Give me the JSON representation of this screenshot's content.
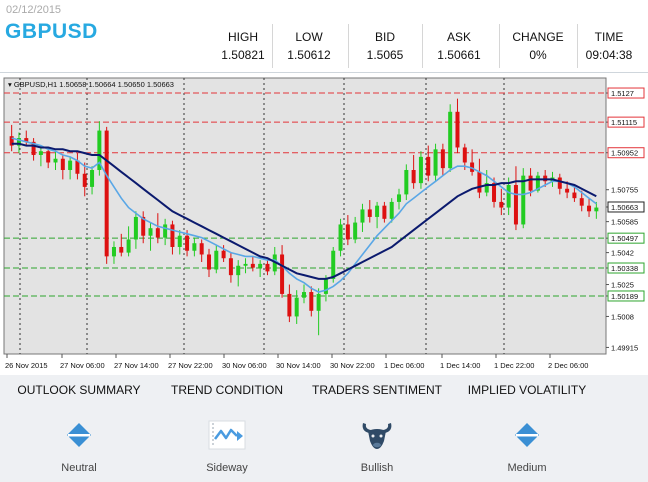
{
  "header": {
    "date": "02/12/2015",
    "symbol": "GBPUSD",
    "stats": [
      {
        "label": "HIGH",
        "value": "1.50821"
      },
      {
        "label": "LOW",
        "value": "1.50612"
      },
      {
        "label": "BID",
        "value": "1.5065"
      },
      {
        "label": "ASK",
        "value": "1.50661"
      },
      {
        "label": "CHANGE",
        "value": "0%"
      },
      {
        "label": "TIME",
        "value": "09:04:38"
      }
    ]
  },
  "chart_data": {
    "type": "line",
    "title": "GBPUSD,H1  1.50658 1.50664 1.50650 1.50663",
    "x_ticks": [
      "26 Nov 2015",
      "27 Nov 06:00",
      "27 Nov 14:00",
      "27 Nov 22:00",
      "30 Nov 06:00",
      "30 Nov 14:00",
      "30 Nov 22:00",
      "1 Dec 06:00",
      "1 Dec 14:00",
      "1 Dec 22:00",
      "2 Dec 06:00"
    ],
    "y_ticks": [
      1.5127,
      1.51115,
      1.50952,
      1.50755,
      1.50663,
      1.50585,
      1.50497,
      1.5042,
      1.50338,
      1.5025,
      1.50189,
      1.5008,
      1.49915
    ],
    "levels": {
      "resistance": [
        1.5127,
        1.51115,
        1.50952
      ],
      "support": [
        1.50497,
        1.50338,
        1.50189
      ],
      "current": 1.50663
    },
    "ylim": [
      1.4988,
      1.5135
    ],
    "grid": true,
    "colors": {
      "bull": "#22cc22",
      "bear": "#dd1111",
      "ma_fast": "#5aa7e6",
      "ma_slow": "#0b1a6e",
      "resistance": "#e3343a",
      "support": "#2ea52e",
      "plot_bg": "#e3e3e3"
    },
    "candles": [
      [
        1.5104,
        1.511,
        1.5096,
        1.5099
      ],
      [
        1.5099,
        1.5106,
        1.5095,
        1.5103
      ],
      [
        1.5103,
        1.5107,
        1.5099,
        1.5101
      ],
      [
        1.5101,
        1.5103,
        1.5091,
        1.5094
      ],
      [
        1.5094,
        1.5098,
        1.5088,
        1.5096
      ],
      [
        1.5096,
        1.5098,
        1.5087,
        1.509
      ],
      [
        1.509,
        1.5096,
        1.5086,
        1.5092
      ],
      [
        1.5092,
        1.5094,
        1.5081,
        1.5086
      ],
      [
        1.5086,
        1.5093,
        1.5081,
        1.5091
      ],
      [
        1.5091,
        1.5095,
        1.5081,
        1.5084
      ],
      [
        1.5084,
        1.509,
        1.5072,
        1.5077
      ],
      [
        1.5077,
        1.5088,
        1.5073,
        1.5086
      ],
      [
        1.5086,
        1.5112,
        1.5083,
        1.5107
      ],
      [
        1.5107,
        1.5109,
        1.5036,
        1.504
      ],
      [
        1.504,
        1.5048,
        1.5036,
        1.5045
      ],
      [
        1.5045,
        1.5052,
        1.504,
        1.5042
      ],
      [
        1.5042,
        1.5056,
        1.504,
        1.5049
      ],
      [
        1.5049,
        1.5064,
        1.5044,
        1.5061
      ],
      [
        1.5061,
        1.5064,
        1.5047,
        1.5051
      ],
      [
        1.5051,
        1.5058,
        1.5043,
        1.5055
      ],
      [
        1.5055,
        1.5063,
        1.5047,
        1.505
      ],
      [
        1.505,
        1.506,
        1.5046,
        1.5057
      ],
      [
        1.5057,
        1.5059,
        1.5041,
        1.5045
      ],
      [
        1.5045,
        1.5054,
        1.5041,
        1.5051
      ],
      [
        1.5051,
        1.5054,
        1.504,
        1.5043
      ],
      [
        1.5043,
        1.505,
        1.504,
        1.5047
      ],
      [
        1.5047,
        1.5049,
        1.5037,
        1.5041
      ],
      [
        1.5041,
        1.5044,
        1.5029,
        1.5033
      ],
      [
        1.5033,
        1.5046,
        1.5031,
        1.5043
      ],
      [
        1.5043,
        1.5046,
        1.5037,
        1.5039
      ],
      [
        1.5039,
        1.5042,
        1.5026,
        1.503
      ],
      [
        1.503,
        1.5038,
        1.5024,
        1.5035
      ],
      [
        1.5035,
        1.5039,
        1.5031,
        1.5036
      ],
      [
        1.5036,
        1.504,
        1.5032,
        1.5034
      ],
      [
        1.5034,
        1.5038,
        1.5029,
        1.5036
      ],
      [
        1.5036,
        1.5038,
        1.503,
        1.5032
      ],
      [
        1.5032,
        1.5045,
        1.503,
        1.5041
      ],
      [
        1.5041,
        1.5046,
        1.5018,
        1.502
      ],
      [
        1.502,
        1.5025,
        1.5005,
        1.5008
      ],
      [
        1.5008,
        1.5022,
        1.5004,
        1.5018
      ],
      [
        1.5018,
        1.5025,
        1.5015,
        1.5021
      ],
      [
        1.5021,
        1.5024,
        1.5008,
        1.5011
      ],
      [
        1.5011,
        1.5023,
        1.4998,
        1.502
      ],
      [
        1.502,
        1.503,
        1.5016,
        1.5028
      ],
      [
        1.5028,
        1.5045,
        1.5026,
        1.5043
      ],
      [
        1.5043,
        1.506,
        1.504,
        1.5057
      ],
      [
        1.5057,
        1.5062,
        1.5046,
        1.5049
      ],
      [
        1.5049,
        1.5061,
        1.5047,
        1.5058
      ],
      [
        1.5058,
        1.5068,
        1.5053,
        1.5065
      ],
      [
        1.5065,
        1.507,
        1.5058,
        1.5061
      ],
      [
        1.5061,
        1.5069,
        1.5055,
        1.5067
      ],
      [
        1.5067,
        1.5069,
        1.5058,
        1.506
      ],
      [
        1.506,
        1.5071,
        1.5058,
        1.5069
      ],
      [
        1.5069,
        1.5076,
        1.5065,
        1.5073
      ],
      [
        1.5073,
        1.5089,
        1.507,
        1.5086
      ],
      [
        1.5086,
        1.5094,
        1.5076,
        1.5079
      ],
      [
        1.5079,
        1.5096,
        1.5076,
        1.5093
      ],
      [
        1.5093,
        1.5099,
        1.508,
        1.5083
      ],
      [
        1.5083,
        1.51,
        1.508,
        1.5097
      ],
      [
        1.5097,
        1.51,
        1.5083,
        1.5087
      ],
      [
        1.5087,
        1.5121,
        1.5085,
        1.5117
      ],
      [
        1.5117,
        1.5124,
        1.5095,
        1.5098
      ],
      [
        1.5098,
        1.51,
        1.5086,
        1.509
      ],
      [
        1.509,
        1.5097,
        1.5083,
        1.5085
      ],
      [
        1.5085,
        1.5092,
        1.5071,
        1.5074
      ],
      [
        1.5074,
        1.5086,
        1.5072,
        1.5079
      ],
      [
        1.5079,
        1.5082,
        1.5066,
        1.5069
      ],
      [
        1.5069,
        1.5076,
        1.5062,
        1.5066
      ],
      [
        1.5066,
        1.5082,
        1.5062,
        1.5078
      ],
      [
        1.5078,
        1.5088,
        1.5054,
        1.5057
      ],
      [
        1.5057,
        1.5087,
        1.5055,
        1.5083
      ],
      [
        1.5083,
        1.5087,
        1.5072,
        1.5075
      ],
      [
        1.5075,
        1.5085,
        1.5074,
        1.5083
      ],
      [
        1.5083,
        1.5086,
        1.5077,
        1.508
      ],
      [
        1.508,
        1.5085,
        1.5077,
        1.5082
      ],
      [
        1.5082,
        1.5084,
        1.5073,
        1.5076
      ],
      [
        1.5076,
        1.508,
        1.5071,
        1.5074
      ],
      [
        1.5074,
        1.5078,
        1.5069,
        1.5071
      ],
      [
        1.5071,
        1.5075,
        1.5064,
        1.5067
      ],
      [
        1.5067,
        1.5071,
        1.5061,
        1.5064
      ],
      [
        1.5064,
        1.5069,
        1.506,
        1.5066
      ]
    ],
    "ma_fast": [
      1.5103,
      1.5102,
      1.5101,
      1.51,
      1.5099,
      1.5097,
      1.5096,
      1.5094,
      1.5093,
      1.5091,
      1.5088,
      1.5087,
      1.509,
      1.5083,
      1.5077,
      1.5071,
      1.5066,
      1.5063,
      1.506,
      1.5058,
      1.5056,
      1.5055,
      1.5054,
      1.5053,
      1.5052,
      1.5051,
      1.505,
      1.5048,
      1.5046,
      1.5044,
      1.5042,
      1.5041,
      1.504,
      1.504,
      1.5039,
      1.5038,
      1.5038,
      1.5035,
      1.5031,
      1.5028,
      1.5026,
      1.5023,
      1.5021,
      1.5022,
      1.5024,
      1.5027,
      1.5031,
      1.5036,
      1.5041,
      1.5046,
      1.5051,
      1.5055,
      1.5059,
      1.5063,
      1.5068,
      1.5071,
      1.5074,
      1.5077,
      1.508,
      1.5083,
      1.5086,
      1.5088,
      1.5088,
      1.5087,
      1.5085,
      1.5083,
      1.508,
      1.5077,
      1.5074,
      1.5073,
      1.5073,
      1.5074,
      1.5076,
      1.5078,
      1.508,
      1.508,
      1.5079,
      1.5077,
      1.5074,
      1.5071,
      1.5068
    ],
    "ma_slow": [
      1.51,
      1.51,
      1.5099,
      1.5099,
      1.5098,
      1.5098,
      1.5097,
      1.5097,
      1.5096,
      1.5096,
      1.5095,
      1.5094,
      1.5094,
      1.5091,
      1.5088,
      1.5085,
      1.5082,
      1.5079,
      1.5076,
      1.5073,
      1.507,
      1.5067,
      1.5064,
      1.5062,
      1.506,
      1.5058,
      1.5056,
      1.5054,
      1.5052,
      1.505,
      1.5048,
      1.5046,
      1.5044,
      1.5042,
      1.504,
      1.5039,
      1.5037,
      1.5035,
      1.5033,
      1.5031,
      1.503,
      1.5029,
      1.5028,
      1.5028,
      1.5029,
      1.5031,
      1.5033,
      1.5035,
      1.5037,
      1.5039,
      1.5041,
      1.5043,
      1.5045,
      1.5048,
      1.5051,
      1.5054,
      1.5057,
      1.506,
      1.5063,
      1.5066,
      1.5069,
      1.5072,
      1.5074,
      1.5076,
      1.5077,
      1.5078,
      1.5078,
      1.5079,
      1.5079,
      1.508,
      1.508,
      1.5081,
      1.5081,
      1.5081,
      1.5081,
      1.508,
      1.5079,
      1.5078,
      1.5076,
      1.5074,
      1.5072
    ]
  },
  "summary": [
    {
      "title": "OUTLOOK SUMMARY",
      "value": "Neutral",
      "icon": "neutral-diamond-icon",
      "color": "#3a8fd4"
    },
    {
      "title": "TREND CONDITION",
      "value": "Sideway",
      "icon": "sideway-trend-icon",
      "color": "#4a9be0"
    },
    {
      "title": "TRADERS SENTIMENT",
      "value": "Bullish",
      "icon": "bull-icon",
      "color": "#2f4a66"
    },
    {
      "title": "IMPLIED VOLATILITY",
      "value": "Medium",
      "icon": "medium-diamond-icon",
      "color": "#3a8fd4"
    }
  ]
}
